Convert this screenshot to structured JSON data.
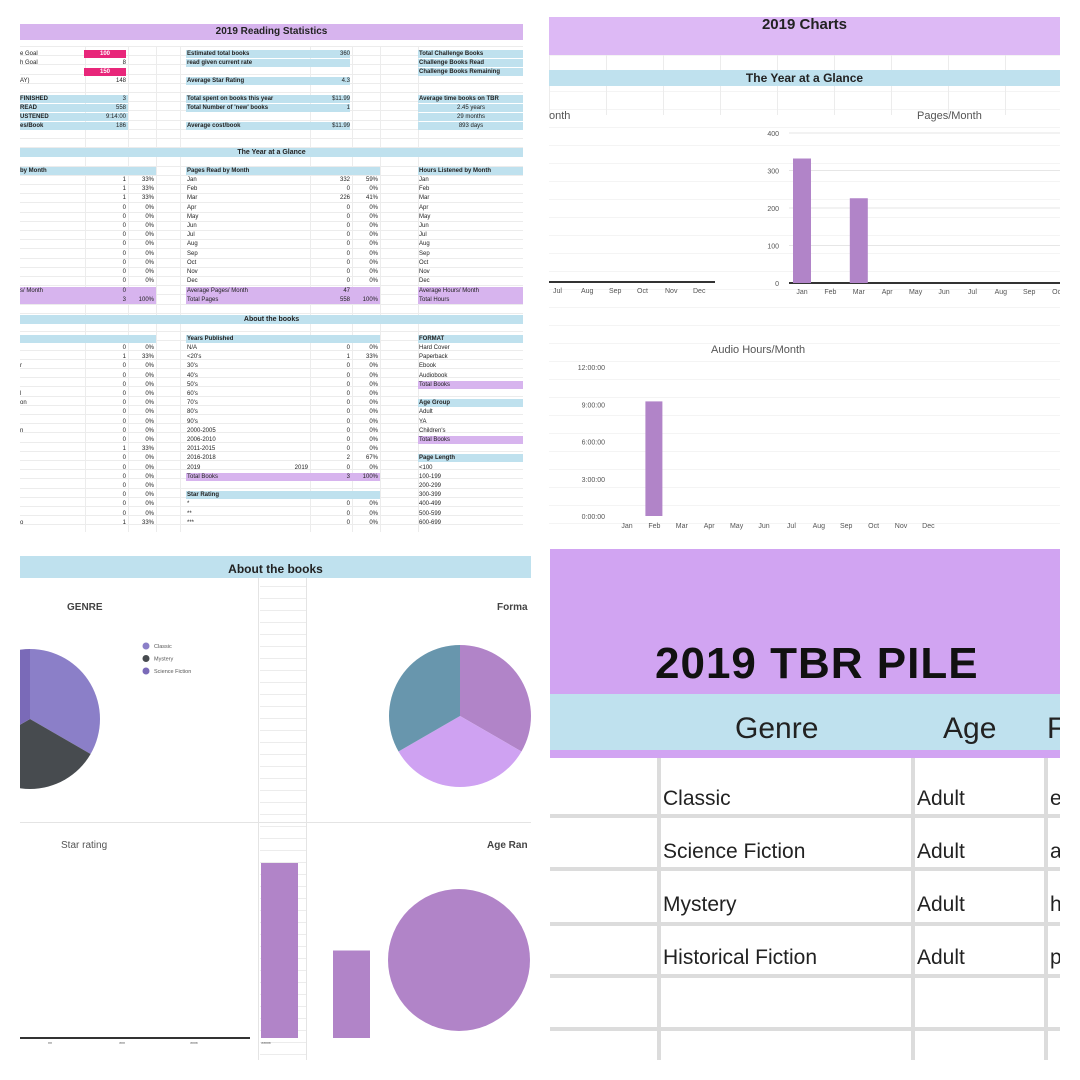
{
  "p1": {
    "title": "2019 Reading Statistics",
    "left_block": [
      {
        "label": "e Goal",
        "value": "100",
        "pink": true
      },
      {
        "label": "h Goal",
        "value": "8"
      },
      {
        "label": "",
        "value": "150",
        "pink": true
      },
      {
        "label": "AY)",
        "value": "148"
      },
      {
        "label": "FINISHED",
        "value": "3",
        "blue": true
      },
      {
        "label": "READ",
        "value": "558",
        "blue": true
      },
      {
        "label": "USTENED",
        "value": "9:14:00",
        "blue": true
      },
      {
        "label": "es/Book",
        "value": "186",
        "blue": true
      }
    ],
    "mid_block": [
      {
        "label": "Estimated total books",
        "value": "360"
      },
      {
        "label": "read given current rate",
        "value": ""
      },
      {
        "label": "Average Star Rating",
        "value": "4.3"
      },
      {
        "label": "Total spent on books this year",
        "value": "$11.99"
      },
      {
        "label": "Total Number of 'new' books",
        "value": "1"
      },
      {
        "label": "Average cost/book",
        "value": "$11.99"
      }
    ],
    "right_block": [
      {
        "label": "Total Challenge Books"
      },
      {
        "label": "Challenge Books Read"
      },
      {
        "label": "Challenge Books Remaining"
      },
      {
        "label": "Average time books on TBR"
      },
      {
        "label": "2.45 years"
      },
      {
        "label": "29 months"
      },
      {
        "label": "893 days"
      }
    ],
    "glance_header": "The Year at a Glance",
    "col_a_header": "by Month",
    "col_b_header": "Pages Read by Month",
    "col_c_header": "Hours Listened by Month",
    "months": [
      "Jan",
      "Feb",
      "Mar",
      "Apr",
      "May",
      "Jun",
      "Jul",
      "Aug",
      "Sep",
      "Oct",
      "Nov",
      "Dec"
    ],
    "books_month": [
      [
        "1",
        "33%"
      ],
      [
        "1",
        "33%"
      ],
      [
        "1",
        "33%"
      ],
      [
        "0",
        "0%"
      ],
      [
        "0",
        "0%"
      ],
      [
        "0",
        "0%"
      ],
      [
        "0",
        "0%"
      ],
      [
        "0",
        "0%"
      ],
      [
        "0",
        "0%"
      ],
      [
        "0",
        "0%"
      ],
      [
        "0",
        "0%"
      ],
      [
        "0",
        "0%"
      ]
    ],
    "pages_month": [
      [
        "332",
        "59%"
      ],
      [
        "0",
        "0%"
      ],
      [
        "226",
        "41%"
      ],
      [
        "0",
        "0%"
      ],
      [
        "0",
        "0%"
      ],
      [
        "0",
        "0%"
      ],
      [
        "0",
        "0%"
      ],
      [
        "0",
        "0%"
      ],
      [
        "0",
        "0%"
      ],
      [
        "0",
        "0%"
      ],
      [
        "0",
        "0%"
      ],
      [
        "0",
        "0%"
      ]
    ],
    "glance_totals": {
      "a1_label": "s/ Month",
      "a1_val": "0",
      "a2_val": "3",
      "a2_pct": "100%",
      "b1_label": "Average Pages/ Month",
      "b1_val": "47",
      "b2_label": "Total Pages",
      "b2_val": "558",
      "b2_pct": "100%",
      "c1_label": "Average Hours/ Month",
      "c2_label": "Total Hours"
    },
    "about_header": "About the books",
    "years_header": "Years Published",
    "years": [
      [
        "N/A",
        "0",
        "0%"
      ],
      [
        "<20's",
        "1",
        "33%"
      ],
      [
        "30's",
        "0",
        "0%"
      ],
      [
        "40's",
        "0",
        "0%"
      ],
      [
        "50's",
        "0",
        "0%"
      ],
      [
        "60's",
        "0",
        "0%"
      ],
      [
        "70's",
        "0",
        "0%"
      ],
      [
        "80's",
        "0",
        "0%"
      ],
      [
        "90's",
        "0",
        "0%"
      ],
      [
        "2000-2005",
        "0",
        "0%"
      ],
      [
        "2006-2010",
        "0",
        "0%"
      ],
      [
        "2011-2015",
        "0",
        "0%"
      ],
      [
        "2016-2018",
        "2",
        "67%"
      ],
      [
        "2019",
        "0",
        "0%"
      ]
    ],
    "years_total": [
      "Total Books",
      "3",
      "100%"
    ],
    "star_header": "Star Rating",
    "stars": [
      [
        "*",
        "0",
        "0%"
      ],
      [
        "**",
        "0",
        "0%"
      ],
      [
        "***",
        "0",
        "0%"
      ]
    ],
    "left_about": [
      [
        "0",
        "0%"
      ],
      [
        "1",
        "33%"
      ],
      [
        "0",
        "0%"
      ],
      [
        "0",
        "0%"
      ],
      [
        "0",
        "0%"
      ],
      [
        "0",
        "0%"
      ],
      [
        "0",
        "0%"
      ],
      [
        "0",
        "0%"
      ],
      [
        "0",
        "0%"
      ],
      [
        "0",
        "0%"
      ],
      [
        "0",
        "0%"
      ],
      [
        "1",
        "33%"
      ],
      [
        "0",
        "0%"
      ],
      [
        "0",
        "0%"
      ],
      [
        "0",
        "0%"
      ],
      [
        "0",
        "0%"
      ],
      [
        "0",
        "0%"
      ],
      [
        "0",
        "0%"
      ],
      [
        "0",
        "0%"
      ],
      [
        "1",
        "33%"
      ]
    ],
    "left_about_labels": [
      "",
      "",
      "r",
      "",
      "",
      "l",
      "on",
      "",
      "",
      "n",
      "",
      "",
      "",
      "",
      "",
      "",
      "",
      "",
      "",
      "o"
    ],
    "format_header": "FORMAT",
    "formats": [
      "Hard Cover",
      "Paperback",
      "Ebook",
      "Audiobook"
    ],
    "format_total": "Total Books",
    "age_header": "Age Group",
    "ages": [
      "Adult",
      "YA",
      "Children's"
    ],
    "age_total": "Total Books",
    "page_len_header": "Page Length",
    "page_lens": [
      "<100",
      "100-199",
      "200-299",
      "300-399",
      "400-499",
      "500-599",
      "600-699"
    ]
  },
  "p2": {
    "title": "2019 Charts",
    "glance_header": "The Year at a Glance",
    "left_chart_title": "onth",
    "left_months": [
      "Jul",
      "Aug",
      "Sep",
      "Oct",
      "Nov",
      "Dec"
    ],
    "pages_chart_title": "Pages/Month",
    "audio_chart_title": "Audio Hours/Month"
  },
  "p3": {
    "header": "About the books",
    "genre_title": "GENRE",
    "genre_legend": [
      "Classic",
      "Mystery",
      "Science Fiction"
    ],
    "format_title": "Forma",
    "star_title": "Star rating",
    "star_ticks": [
      "**",
      "***",
      "****",
      "*****"
    ],
    "age_title": "Age Ran"
  },
  "p4": {
    "title": "2019 TBR PILE",
    "col_genre": "Genre",
    "col_age": "Age",
    "col_f": "F",
    "rows": [
      {
        "genre": "Classic",
        "age": "Adult",
        "f": "e"
      },
      {
        "genre": "Science Fiction",
        "age": "Adult",
        "f": "a"
      },
      {
        "genre": "Mystery",
        "age": "Adult",
        "f": "h"
      },
      {
        "genre": "Historical Fiction",
        "age": "Adult",
        "f": "p"
      }
    ]
  },
  "chart_data": [
    {
      "type": "bar",
      "title": "Pages/Month",
      "categories": [
        "Jan",
        "Feb",
        "Mar",
        "Apr",
        "May",
        "Jun",
        "Jul",
        "Aug",
        "Sep",
        "Oct"
      ],
      "values": [
        332,
        0,
        226,
        0,
        0,
        0,
        0,
        0,
        0,
        0
      ],
      "ylim": [
        0,
        400
      ],
      "yticks": [
        "0",
        "100",
        "200",
        "300",
        "400"
      ],
      "color": "#b184c8"
    },
    {
      "type": "bar",
      "title": "Audio Hours/Month",
      "categories": [
        "Jan",
        "Feb",
        "Mar",
        "Apr",
        "May",
        "Jun",
        "Jul",
        "Aug",
        "Sep",
        "Oct",
        "Nov",
        "Dec"
      ],
      "values": [
        0,
        9.23,
        0,
        0,
        0,
        0,
        0,
        0,
        0,
        0,
        0,
        0
      ],
      "ylim": [
        0,
        12
      ],
      "yticks": [
        "0:00:00",
        "3:00:00",
        "6:00:00",
        "9:00:00",
        "12:00:00"
      ],
      "color": "#b184c8"
    },
    {
      "type": "pie",
      "title": "GENRE",
      "labels": [
        "Classic",
        "Mystery",
        "Science Fiction"
      ],
      "values": [
        1,
        1,
        1
      ],
      "colors": [
        "#8b7fc8",
        "#474b4f",
        "#7a6ab8"
      ]
    },
    {
      "type": "pie",
      "title": "Forma",
      "values": [
        1,
        1,
        1
      ],
      "colors": [
        "#b184c8",
        "#cfa2f2",
        "#6896ad"
      ]
    },
    {
      "type": "bar",
      "title": "Star rating",
      "categories": [
        "**",
        "***",
        "****",
        "*****"
      ],
      "values": [
        0,
        0,
        2,
        1
      ],
      "color": "#b184c8"
    },
    {
      "type": "pie",
      "title": "Age Ran",
      "values": [
        1
      ],
      "colors": [
        "#b184c8"
      ]
    }
  ]
}
